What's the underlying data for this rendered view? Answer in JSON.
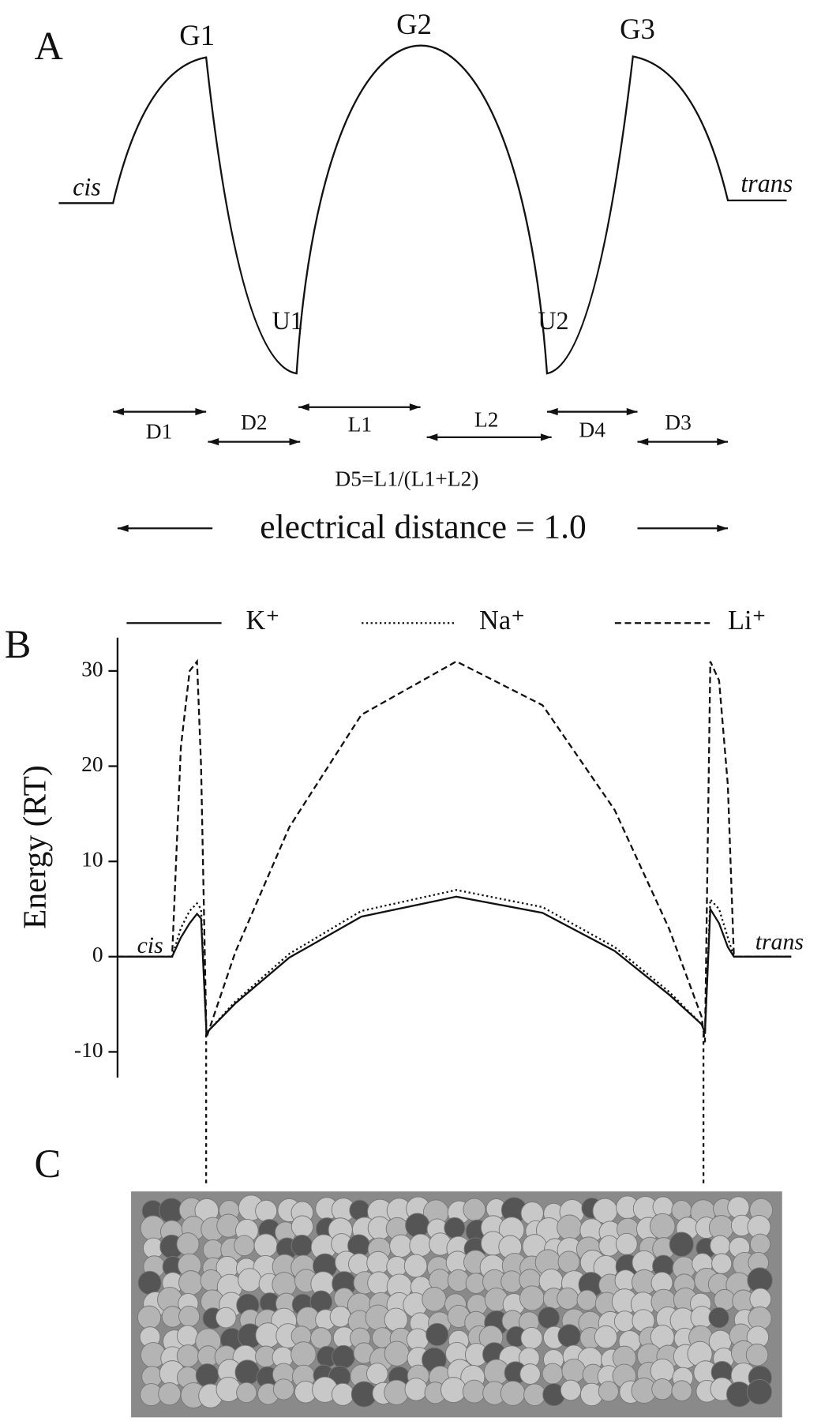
{
  "panel_a": {
    "label": "A",
    "peaks": [
      "G1",
      "G2",
      "G3"
    ],
    "wells": [
      "U1",
      "U2"
    ],
    "cis": "cis",
    "trans": "trans",
    "distances": [
      "D1",
      "D2",
      "L1",
      "L2",
      "D4",
      "D3"
    ],
    "formula": "D5=L1/(L1+L2)",
    "caption": "electrical distance = 1.0"
  },
  "chart_data": {
    "type": "line",
    "label": "B",
    "ylabel": "Energy (RT)",
    "cis": "cis",
    "trans": "trans",
    "x": [
      0,
      0.081,
      0.094,
      0.107,
      0.118,
      0.124,
      0.132,
      0.175,
      0.255,
      0.362,
      0.503,
      0.631,
      0.738,
      0.819,
      0.867,
      0.872,
      0.88,
      0.893,
      0.906,
      0.915,
      1
    ],
    "xlim": [
      0,
      1
    ],
    "ylim": [
      -12.7,
      33.5
    ],
    "yticks": [
      -10,
      0,
      10,
      20,
      30
    ],
    "series": [
      {
        "name": "K⁺",
        "color": "#111111",
        "dash": "solid",
        "values": [
          0,
          0,
          2,
          3.5,
          4.5,
          4,
          -8,
          -4.9,
          -0.1,
          4.2,
          6.3,
          4.6,
          0.6,
          -4,
          -7.1,
          -8,
          5,
          3.5,
          1,
          0,
          0
        ]
      },
      {
        "name": "Na⁺",
        "color": "#111111",
        "dash": "dotted",
        "values": [
          0,
          0,
          3,
          4.8,
          5.6,
          5,
          -8,
          -4.7,
          0.3,
          4.8,
          7,
          5.2,
          1,
          -3.7,
          -7.1,
          -8,
          6,
          5,
          2,
          0,
          0
        ]
      },
      {
        "name": "Li⁺",
        "color": "#111111",
        "dash": "dashed",
        "values": [
          0,
          0,
          22,
          30,
          31,
          20,
          -8.5,
          0.5,
          13.6,
          25.4,
          31,
          26.4,
          15.4,
          2.9,
          -6.3,
          -9,
          31,
          29,
          18,
          0,
          0
        ]
      }
    ]
  },
  "panel_c": {
    "label": "C"
  }
}
